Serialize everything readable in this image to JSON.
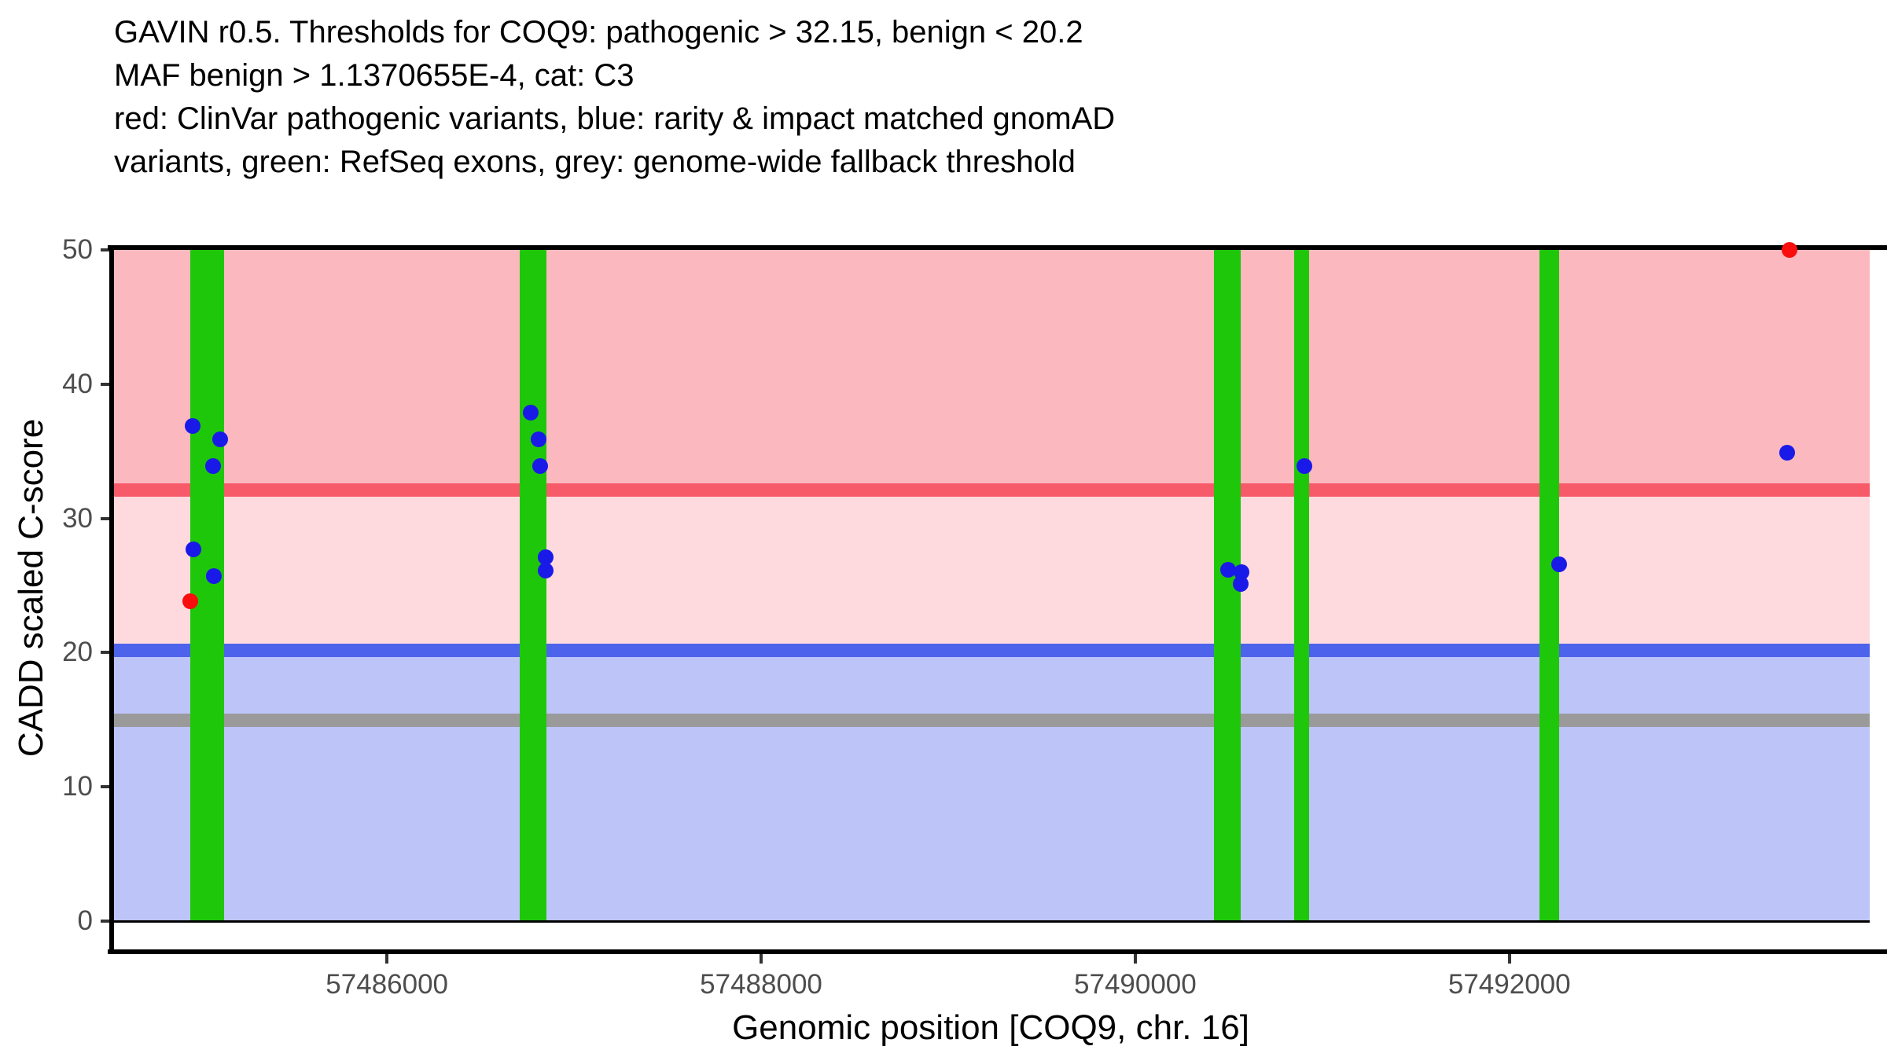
{
  "title_lines": [
    "GAVIN r0.5. Thresholds for COQ9: pathogenic > 32.15, benign < 20.2",
    "MAF benign > 1.1370655E-4, cat: C3",
    "red: ClinVar pathogenic variants, blue: rarity & impact matched gnomAD",
    "variants, green: RefSeq exons, grey: genome-wide fallback threshold"
  ],
  "chart_data": {
    "type": "scatter",
    "title": "GAVIN r0.5. Thresholds for COQ9: pathogenic > 32.15, benign < 20.2 MAF benign > 1.1370655E-4, cat: C3",
    "xlabel": "Genomic position [COQ9, chr. 16]",
    "ylabel": "CADD scaled C-score",
    "x_domain": [
      57484524,
      57493926
    ],
    "y_domain": [
      0,
      50
    ],
    "x_ticks": [
      57486000,
      57488000,
      57490000,
      57492000
    ],
    "y_ticks": [
      0,
      10,
      20,
      30,
      40,
      50
    ],
    "grid": false,
    "legend": "described in title text",
    "regions": [
      {
        "name": "pathogenic-zone",
        "from": 32.15,
        "to": 50,
        "color": "#FBB8BF"
      },
      {
        "name": "vus-zone",
        "from": 20.2,
        "to": 32.15,
        "color": "#FEDADF"
      },
      {
        "name": "benign-zone",
        "from": 0,
        "to": 20.2,
        "color": "#BDC4F8"
      }
    ],
    "thresholds": [
      {
        "id": "pathogenic-threshold",
        "label": "pathogenic > 32.15",
        "value": 32.15,
        "color": "#F75A68"
      },
      {
        "id": "benign-threshold",
        "label": "benign < 20.2",
        "value": 20.2,
        "color": "#4D63EB"
      },
      {
        "id": "fallback-threshold",
        "label": "genome-wide fallback threshold",
        "value": 15,
        "color": "#9A9A9A"
      }
    ],
    "exon_color": "#1FC70B",
    "exons": [
      {
        "start": 57484949,
        "end": 57485129
      },
      {
        "start": 57486711,
        "end": 57486854
      },
      {
        "start": 57490419,
        "end": 57490562
      },
      {
        "start": 57490848,
        "end": 57490928
      },
      {
        "start": 57492160,
        "end": 57492265
      }
    ],
    "series": [
      {
        "id": "clinvar",
        "name": "ClinVar pathogenic variants",
        "color": "#FA0D0D",
        "points": [
          [
            57484948,
            23.8
          ],
          [
            57493497,
            50
          ]
        ]
      },
      {
        "id": "gnomad",
        "name": "rarity & impact matched gnomAD variants",
        "color": "#1A1AE8",
        "points": [
          [
            57484963,
            36.9
          ],
          [
            57485107,
            35.9
          ],
          [
            57485069,
            33.9
          ],
          [
            57484964,
            27.7
          ],
          [
            57485074,
            25.7
          ],
          [
            57486770,
            37.9
          ],
          [
            57486812,
            35.9
          ],
          [
            57486820,
            33.9
          ],
          [
            57486849,
            27.1
          ],
          [
            57486849,
            26.1
          ],
          [
            57490495,
            26.2
          ],
          [
            57490567,
            26.0
          ],
          [
            57490562,
            25.1
          ],
          [
            57490902,
            33.9
          ],
          [
            57492264,
            26.6
          ],
          [
            57493483,
            34.9
          ]
        ]
      }
    ]
  }
}
